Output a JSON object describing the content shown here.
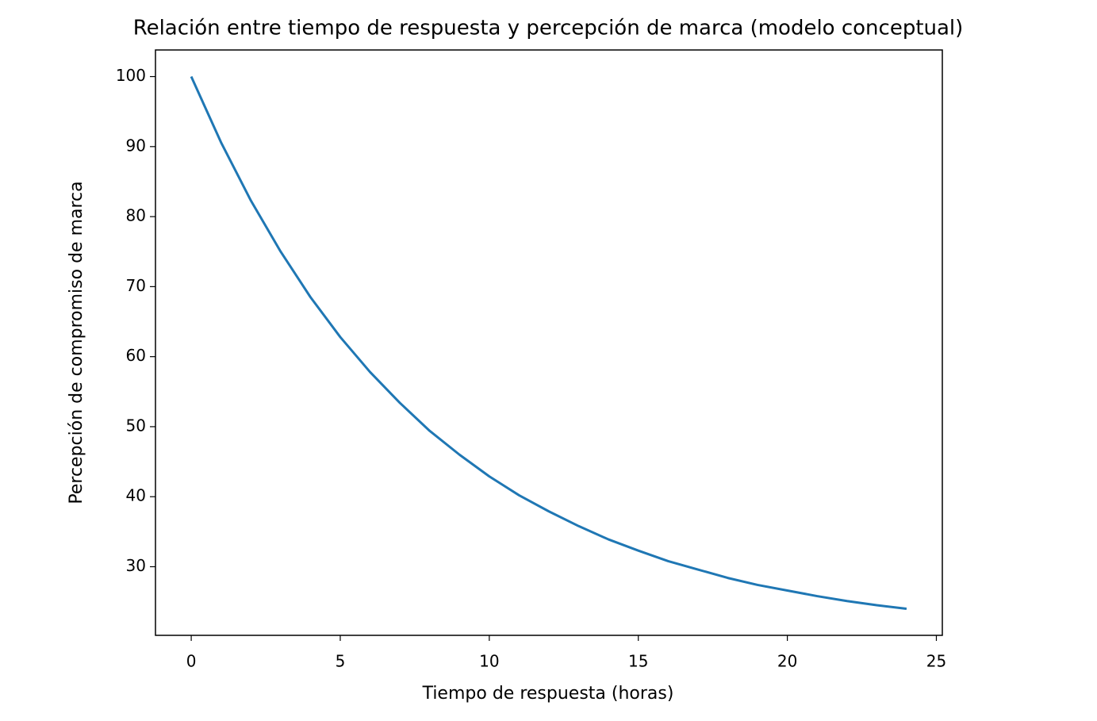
{
  "chart_data": {
    "type": "line",
    "title": "Relación entre tiempo de respuesta y percepción de marca (modelo conceptual)",
    "xlabel": "Tiempo de respuesta (horas)",
    "ylabel": "Percepción de compromiso de marca",
    "x": [
      0,
      1,
      2,
      3,
      4,
      5,
      6,
      7,
      8,
      9,
      10,
      11,
      12,
      13,
      14,
      15,
      16,
      17,
      18,
      19,
      20,
      21,
      22,
      23,
      24
    ],
    "series": [
      {
        "color": "#1f77b4",
        "values": [
          100,
          90.6,
          82.3,
          75.0,
          68.5,
          62.8,
          57.8,
          53.4,
          49.4,
          46.0,
          42.9,
          40.2,
          37.9,
          35.8,
          33.9,
          32.3,
          30.8,
          29.6,
          28.4,
          27.4,
          26.6,
          25.8,
          25.1,
          24.5,
          24.0
        ]
      }
    ],
    "xlim": [
      -1.2,
      25.2
    ],
    "ylim": [
      20.2,
      103.8
    ],
    "xticks": [
      0,
      5,
      10,
      15,
      20,
      25
    ],
    "yticks": [
      30,
      40,
      50,
      60,
      70,
      80,
      90,
      100
    ],
    "grid": false
  }
}
